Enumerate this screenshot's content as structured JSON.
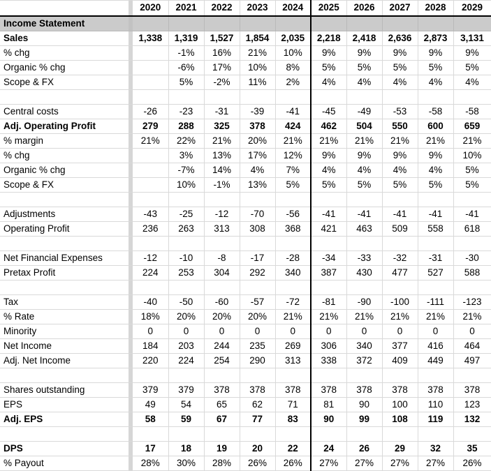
{
  "table": {
    "section_header": "Income Statement",
    "years": [
      "2020",
      "2021",
      "2022",
      "2023",
      "2024",
      "2025",
      "2026",
      "2027",
      "2028",
      "2029"
    ],
    "forecast_start_year": "2025",
    "rows": [
      {
        "label": "Sales",
        "bold": true,
        "values": [
          "1,338",
          "1,319",
          "1,527",
          "1,854",
          "2,035",
          "2,218",
          "2,418",
          "2,636",
          "2,873",
          "3,131"
        ]
      },
      {
        "label": "% chg",
        "bold": false,
        "values": [
          "",
          "-1%",
          "16%",
          "21%",
          "10%",
          "9%",
          "9%",
          "9%",
          "9%",
          "9%"
        ]
      },
      {
        "label": "Organic % chg",
        "bold": false,
        "values": [
          "",
          "-6%",
          "17%",
          "10%",
          "8%",
          "5%",
          "5%",
          "5%",
          "5%",
          "5%"
        ]
      },
      {
        "label": "Scope & FX",
        "bold": false,
        "values": [
          "",
          "5%",
          "-2%",
          "11%",
          "2%",
          "4%",
          "4%",
          "4%",
          "4%",
          "4%"
        ]
      },
      {
        "label": "",
        "bold": false,
        "values": [
          "",
          "",
          "",
          "",
          "",
          "",
          "",
          "",
          "",
          ""
        ]
      },
      {
        "label": "Central costs",
        "bold": false,
        "values": [
          "-26",
          "-23",
          "-31",
          "-39",
          "-41",
          "-45",
          "-49",
          "-53",
          "-58",
          "-58"
        ]
      },
      {
        "label": "Adj. Operating Profit",
        "bold": true,
        "values": [
          "279",
          "288",
          "325",
          "378",
          "424",
          "462",
          "504",
          "550",
          "600",
          "659"
        ]
      },
      {
        "label": "% margin",
        "bold": false,
        "values": [
          "21%",
          "22%",
          "21%",
          "20%",
          "21%",
          "21%",
          "21%",
          "21%",
          "21%",
          "21%"
        ]
      },
      {
        "label": "% chg",
        "bold": false,
        "values": [
          "",
          "3%",
          "13%",
          "17%",
          "12%",
          "9%",
          "9%",
          "9%",
          "9%",
          "10%"
        ]
      },
      {
        "label": "Organic % chg",
        "bold": false,
        "values": [
          "",
          "-7%",
          "14%",
          "4%",
          "7%",
          "4%",
          "4%",
          "4%",
          "4%",
          "5%"
        ]
      },
      {
        "label": "Scope & FX",
        "bold": false,
        "values": [
          "",
          "10%",
          "-1%",
          "13%",
          "5%",
          "5%",
          "5%",
          "5%",
          "5%",
          "5%"
        ]
      },
      {
        "label": "",
        "bold": false,
        "values": [
          "",
          "",
          "",
          "",
          "",
          "",
          "",
          "",
          "",
          ""
        ]
      },
      {
        "label": "Adjustments",
        "bold": false,
        "values": [
          "-43",
          "-25",
          "-12",
          "-70",
          "-56",
          "-41",
          "-41",
          "-41",
          "-41",
          "-41"
        ]
      },
      {
        "label": "Operating Profit",
        "bold": false,
        "values": [
          "236",
          "263",
          "313",
          "308",
          "368",
          "421",
          "463",
          "509",
          "558",
          "618"
        ]
      },
      {
        "label": "",
        "bold": false,
        "values": [
          "",
          "",
          "",
          "",
          "",
          "",
          "",
          "",
          "",
          ""
        ]
      },
      {
        "label": "Net Financial Expenses",
        "bold": false,
        "values": [
          "-12",
          "-10",
          "-8",
          "-17",
          "-28",
          "-34",
          "-33",
          "-32",
          "-31",
          "-30"
        ]
      },
      {
        "label": "Pretax Profit",
        "bold": false,
        "values": [
          "224",
          "253",
          "304",
          "292",
          "340",
          "387",
          "430",
          "477",
          "527",
          "588"
        ]
      },
      {
        "label": "",
        "bold": false,
        "values": [
          "",
          "",
          "",
          "",
          "",
          "",
          "",
          "",
          "",
          ""
        ]
      },
      {
        "label": "Tax",
        "bold": false,
        "values": [
          "-40",
          "-50",
          "-60",
          "-57",
          "-72",
          "-81",
          "-90",
          "-100",
          "-111",
          "-123"
        ]
      },
      {
        "label": "% Rate",
        "bold": false,
        "values": [
          "18%",
          "20%",
          "20%",
          "20%",
          "21%",
          "21%",
          "21%",
          "21%",
          "21%",
          "21%"
        ]
      },
      {
        "label": "Minority",
        "bold": false,
        "values": [
          "0",
          "0",
          "0",
          "0",
          "0",
          "0",
          "0",
          "0",
          "0",
          "0"
        ]
      },
      {
        "label": "Net Income",
        "bold": false,
        "values": [
          "184",
          "203",
          "244",
          "235",
          "269",
          "306",
          "340",
          "377",
          "416",
          "464"
        ]
      },
      {
        "label": "Adj. Net Income",
        "bold": false,
        "values": [
          "220",
          "224",
          "254",
          "290",
          "313",
          "338",
          "372",
          "409",
          "449",
          "497"
        ]
      },
      {
        "label": "",
        "bold": false,
        "values": [
          "",
          "",
          "",
          "",
          "",
          "",
          "",
          "",
          "",
          ""
        ]
      },
      {
        "label": "Shares outstanding",
        "bold": false,
        "values": [
          "379",
          "379",
          "378",
          "378",
          "378",
          "378",
          "378",
          "378",
          "378",
          "378"
        ]
      },
      {
        "label": "EPS",
        "bold": false,
        "values": [
          "49",
          "54",
          "65",
          "62",
          "71",
          "81",
          "90",
          "100",
          "110",
          "123"
        ]
      },
      {
        "label": "Adj. EPS",
        "bold": true,
        "values": [
          "58",
          "59",
          "67",
          "77",
          "83",
          "90",
          "99",
          "108",
          "119",
          "132"
        ]
      },
      {
        "label": "",
        "bold": false,
        "values": [
          "",
          "",
          "",
          "",
          "",
          "",
          "",
          "",
          "",
          ""
        ]
      },
      {
        "label": "DPS",
        "bold": true,
        "values": [
          "17",
          "18",
          "19",
          "20",
          "22",
          "24",
          "26",
          "29",
          "32",
          "35"
        ]
      },
      {
        "label": "% Payout",
        "bold": false,
        "values": [
          "28%",
          "30%",
          "28%",
          "26%",
          "26%",
          "27%",
          "27%",
          "27%",
          "27%",
          "26%"
        ]
      }
    ],
    "colors": {
      "section_fill": "#cbcbcb",
      "separator_fill": "#d6d6d6",
      "gridline": "#d9d9d9",
      "section_gridline": "#b9b9b9",
      "header_border": "#000000",
      "forecast_divider": "#000000",
      "text": "#000000",
      "background": "#ffffff"
    }
  }
}
